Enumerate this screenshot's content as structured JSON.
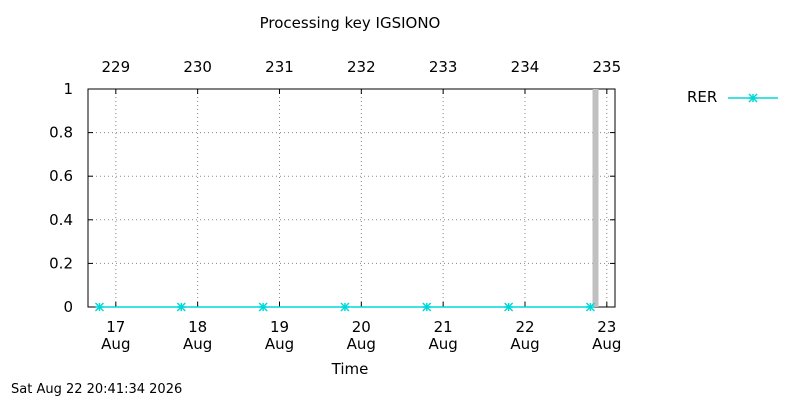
{
  "chart_data": {
    "type": "line",
    "title": "Processing key IGSIONO",
    "xlabel": "Time",
    "ylabel": "",
    "timestamp": "Sat Aug 22 20:41:34 2026",
    "ylim": [
      0,
      1
    ],
    "y_ticks": [
      "0",
      "0.2",
      "0.4",
      "0.6",
      "0.8",
      "1"
    ],
    "x_ticks_bottom": [
      {
        "day": "17",
        "month": "Aug"
      },
      {
        "day": "18",
        "month": "Aug"
      },
      {
        "day": "19",
        "month": "Aug"
      },
      {
        "day": "20",
        "month": "Aug"
      },
      {
        "day": "21",
        "month": "Aug"
      },
      {
        "day": "22",
        "month": "Aug"
      },
      {
        "day": "23",
        "month": "Aug"
      }
    ],
    "x_ticks_top": [
      "229",
      "230",
      "231",
      "232",
      "233",
      "234",
      "235"
    ],
    "grid": true,
    "legend_position": "right",
    "series": [
      {
        "name": "RER",
        "color": "#00d8d8",
        "marker": "asterisk",
        "x": [
          "Aug 16.8",
          "Aug 17.8",
          "Aug 18.8",
          "Aug 19.8",
          "Aug 20.8",
          "Aug 21.8",
          "Aug 22.8"
        ],
        "values": [
          0,
          0,
          0,
          0,
          0,
          0,
          0
        ]
      }
    ],
    "current_time_marker": {
      "x": "Aug 22 20:41",
      "color": "#c0c0c0"
    }
  }
}
